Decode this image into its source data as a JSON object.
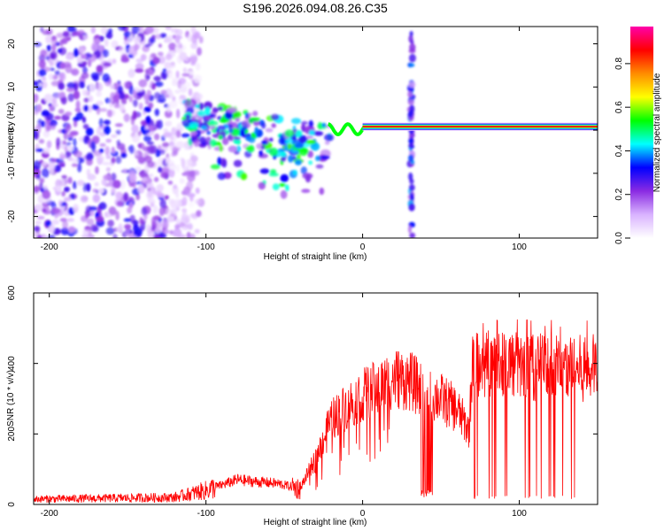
{
  "title": "S196.2026.094.08.26.C35",
  "chart_data": [
    {
      "type": "heatmap",
      "name": "spectrogram",
      "xlabel": "Height of straight line (km)",
      "ylabel": "Frequency (Hz)",
      "xlim": [
        -210,
        150
      ],
      "ylim": [
        -25,
        24
      ],
      "x_ticks": [
        -200,
        -100,
        0,
        100
      ],
      "y_ticks": [
        -20,
        -10,
        0,
        10,
        20
      ],
      "colorbar": {
        "label": "Normalized spectral amplitude",
        "range": [
          0,
          0.97
        ],
        "ticks": [
          0.0,
          0.2,
          0.4,
          0.6,
          0.8
        ],
        "colors": [
          "#ffffff",
          "#d9b3ff",
          "#8a2be2",
          "#0000ff",
          "#00ffff",
          "#00ff00",
          "#ffff00",
          "#ff8c00",
          "#ff0000",
          "#ff00aa"
        ]
      },
      "features": [
        {
          "name": "noise",
          "x_range": [
            -210,
            -115
          ],
          "amplitude": 0.2
        },
        {
          "name": "scattered-echo",
          "x_range": [
            -115,
            -20
          ],
          "freq_center": -3,
          "amplitude": 0.35
        },
        {
          "name": "main-line",
          "x_range": [
            0,
            150
          ],
          "freq": 0.8,
          "amplitude": 0.9
        },
        {
          "name": "vertical-stripe",
          "x": 31,
          "amplitude": 0.3
        }
      ]
    },
    {
      "type": "line",
      "name": "snr",
      "xlabel": "Height of straight line (km)",
      "ylabel": "SNR (10 * v/v)",
      "xlim": [
        -210,
        150
      ],
      "ylim": [
        0,
        600
      ],
      "x_ticks": [
        -200,
        -100,
        0,
        100
      ],
      "y_ticks": [
        0,
        200,
        400,
        600
      ],
      "color": "#ff0000",
      "envelope": {
        "x": [
          -210,
          -120,
          -100,
          -80,
          -70,
          -55,
          -40,
          -30,
          -20,
          -10,
          0,
          10,
          20,
          30,
          40,
          50,
          60,
          68,
          70,
          80,
          90,
          100,
          110,
          120,
          130,
          140,
          150
        ],
        "y": [
          15,
          20,
          40,
          70,
          65,
          60,
          45,
          130,
          240,
          280,
          310,
          330,
          360,
          350,
          320,
          300,
          270,
          210,
          390,
          400,
          410,
          390,
          390,
          395,
          390,
          385,
          390
        ]
      }
    }
  ]
}
